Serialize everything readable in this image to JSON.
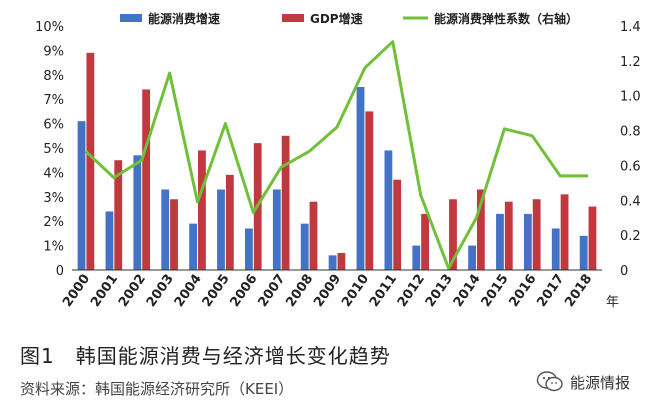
{
  "figure_caption": "图1　韩国能源消费与经济增长变化趋势",
  "source_note": "资料来源：韩国能源经济研究所（KEEI）",
  "watermark": "能源情报",
  "watermark_icon": "wechat-icon",
  "colors": {
    "energy_bar": "#4472C4",
    "gdp_bar": "#C0393F",
    "elasticity_line": "#70C03A"
  },
  "chart_data": {
    "type": "bar",
    "categories": [
      "2000",
      "2001",
      "2002",
      "2003",
      "2004",
      "2005",
      "2006",
      "2007",
      "2008",
      "2009",
      "2010",
      "2011",
      "2012",
      "2013",
      "2014",
      "2015",
      "2016",
      "2017",
      "2018"
    ],
    "x_unit_label": "年",
    "left_axis": {
      "ylim": [
        0,
        10
      ],
      "ticks": [
        "0",
        "1%",
        "2%",
        "3%",
        "4%",
        "5%",
        "6%",
        "7%",
        "8%",
        "9%",
        "10%"
      ]
    },
    "right_axis": {
      "ylim": [
        0,
        1.4
      ],
      "ticks": [
        "0",
        "0.2",
        "0.4",
        "0.6",
        "0.8",
        "1.0",
        "1.2",
        "1.4"
      ]
    },
    "legend_position": "top",
    "series": [
      {
        "name": "能源消费增速",
        "type": "bar",
        "axis": "left",
        "values": [
          6.1,
          2.4,
          4.7,
          3.3,
          1.9,
          3.3,
          1.7,
          3.3,
          1.9,
          0.6,
          7.5,
          4.9,
          1.0,
          0.0,
          1.0,
          2.3,
          2.3,
          1.7,
          1.4
        ]
      },
      {
        "name": "GDP增速",
        "type": "bar",
        "axis": "left",
        "values": [
          8.9,
          4.5,
          7.4,
          2.9,
          4.9,
          3.9,
          5.2,
          5.5,
          2.8,
          0.7,
          6.5,
          3.7,
          2.3,
          2.9,
          3.3,
          2.8,
          2.9,
          3.1,
          2.6
        ]
      },
      {
        "name": "能源消费弹性系数（右轴）",
        "type": "line",
        "axis": "right",
        "values": [
          0.68,
          0.53,
          0.63,
          1.13,
          0.39,
          0.84,
          0.33,
          0.59,
          0.68,
          0.82,
          1.16,
          1.31,
          0.43,
          0.01,
          0.3,
          0.81,
          0.77,
          0.54,
          0.54
        ]
      }
    ]
  }
}
